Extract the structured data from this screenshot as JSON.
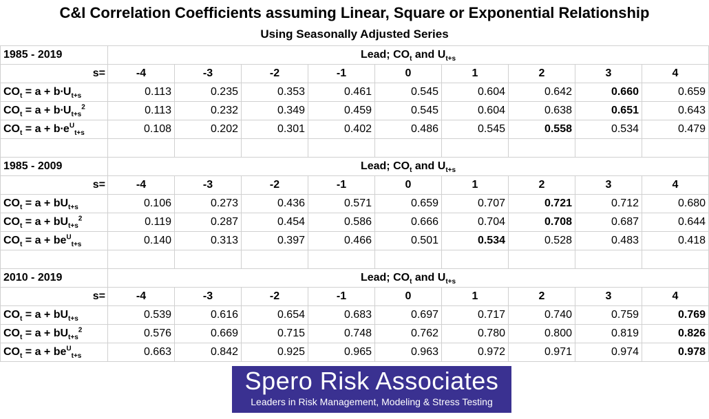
{
  "title": "C&I Correlation Coefficients assuming Linear, Square or Exponential Relationship",
  "subtitle": "Using Seasonally Adjusted Series",
  "s_label": "s=",
  "s_values": [
    "-4",
    "-3",
    "-2",
    "-1",
    "0",
    "1",
    "2",
    "3",
    "4"
  ],
  "lead_header": {
    "main": "Lead; CO",
    "sub_t": "t",
    "mid": " and U",
    "sub_ts": "t+s"
  },
  "sections": [
    {
      "period": "1985 - 2019",
      "rows": [
        {
          "eq": {
            "a": "CO",
            "a_sub": "t",
            "b": " = a + b∙U",
            "b_sub": "t+s",
            "sup": ""
          },
          "values": [
            "0.113",
            "0.235",
            "0.353",
            "0.461",
            "0.545",
            "0.604",
            "0.642",
            "0.660",
            "0.659"
          ],
          "bold": [
            7
          ]
        },
        {
          "eq": {
            "a": "CO",
            "a_sub": "t",
            "b": " = a + b∙U",
            "b_sub": "t+s",
            "sup": "2"
          },
          "values": [
            "0.113",
            "0.232",
            "0.349",
            "0.459",
            "0.545",
            "0.604",
            "0.638",
            "0.651",
            "0.643"
          ],
          "bold": [
            7
          ]
        },
        {
          "eq": {
            "a": "CO",
            "a_sub": "t",
            "b": " = a + b∙e",
            "e_sup": "U",
            "b_sub": "t+s",
            "sup": ""
          },
          "values": [
            "0.108",
            "0.202",
            "0.301",
            "0.402",
            "0.486",
            "0.545",
            "0.558",
            "0.534",
            "0.479"
          ],
          "bold": [
            6
          ]
        }
      ]
    },
    {
      "period": "1985 - 2009",
      "rows": [
        {
          "eq": {
            "a": "CO",
            "a_sub": "t",
            "b": " = a + bU",
            "b_sub": "t+s",
            "sup": ""
          },
          "values": [
            "0.106",
            "0.273",
            "0.436",
            "0.571",
            "0.659",
            "0.707",
            "0.721",
            "0.712",
            "0.680"
          ],
          "bold": [
            6
          ]
        },
        {
          "eq": {
            "a": "CO",
            "a_sub": "t",
            "b": " = a + bU",
            "b_sub": "t+s",
            "sup": "2"
          },
          "values": [
            "0.119",
            "0.287",
            "0.454",
            "0.586",
            "0.666",
            "0.704",
            "0.708",
            "0.687",
            "0.644"
          ],
          "bold": [
            6
          ]
        },
        {
          "eq": {
            "a": "CO",
            "a_sub": "t",
            "b": " = a + be",
            "e_sup": "U",
            "b_sub": "t+s",
            "sup": ""
          },
          "values": [
            "0.140",
            "0.313",
            "0.397",
            "0.466",
            "0.501",
            "0.534",
            "0.528",
            "0.483",
            "0.418"
          ],
          "bold": [
            5
          ]
        }
      ]
    },
    {
      "period": "2010 - 2019",
      "rows": [
        {
          "eq": {
            "a": "CO",
            "a_sub": "t",
            "b": " = a + bU",
            "b_sub": "t+s",
            "sup": ""
          },
          "values": [
            "0.539",
            "0.616",
            "0.654",
            "0.683",
            "0.697",
            "0.717",
            "0.740",
            "0.759",
            "0.769"
          ],
          "bold": [
            8
          ]
        },
        {
          "eq": {
            "a": "CO",
            "a_sub": "t",
            "b": " = a + bU",
            "b_sub": "t+s",
            "sup": "2"
          },
          "values": [
            "0.576",
            "0.669",
            "0.715",
            "0.748",
            "0.762",
            "0.780",
            "0.800",
            "0.819",
            "0.826"
          ],
          "bold": [
            8
          ]
        },
        {
          "eq": {
            "a": "CO",
            "a_sub": "t",
            "b": " = a + be",
            "e_sup": "U",
            "b_sub": "t+s",
            "sup": ""
          },
          "values": [
            "0.663",
            "0.842",
            "0.925",
            "0.965",
            "0.963",
            "0.972",
            "0.971",
            "0.974",
            "0.978"
          ],
          "bold": [
            8
          ]
        }
      ]
    }
  ],
  "logo": {
    "name": "Spero Risk Associates",
    "tagline": "Leaders in Risk Management, Modeling & Stress Testing"
  },
  "colors": {
    "logo_bg": "#3a3191",
    "grid": "#d0d0d0"
  }
}
